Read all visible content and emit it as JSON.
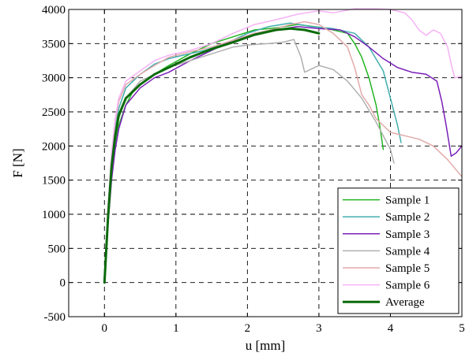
{
  "chart_data": {
    "type": "line",
    "xlabel": "u [mm]",
    "ylabel": "F [N]",
    "xlim": [
      -0.5,
      5
    ],
    "ylim": [
      -500,
      4000
    ],
    "xticks": [
      0,
      1,
      2,
      3,
      4,
      5
    ],
    "yticks": [
      -500,
      0,
      500,
      1000,
      1500,
      2000,
      2500,
      3000,
      3500,
      4000
    ],
    "grid": true,
    "legend_position": "bottom-right",
    "series": [
      {
        "name": "Sample 1",
        "color": "#22b522",
        "width": 1.5,
        "x": [
          0.0,
          0.05,
          0.1,
          0.15,
          0.2,
          0.3,
          0.4,
          0.5,
          0.7,
          0.9,
          1.2,
          1.5,
          1.8,
          2.1,
          2.4,
          2.7,
          3.0,
          3.2,
          3.4,
          3.5,
          3.6,
          3.7,
          3.8,
          3.85,
          3.9
        ],
        "y": [
          0,
          900,
          1600,
          2050,
          2300,
          2600,
          2800,
          2900,
          3050,
          3180,
          3350,
          3500,
          3600,
          3700,
          3730,
          3780,
          3740,
          3700,
          3650,
          3500,
          3300,
          3000,
          2600,
          2300,
          1950
        ]
      },
      {
        "name": "Sample 2",
        "color": "#42aeae",
        "width": 1.5,
        "x": [
          0.0,
          0.05,
          0.1,
          0.15,
          0.2,
          0.3,
          0.5,
          0.7,
          0.9,
          1.1,
          1.4,
          1.7,
          2.0,
          2.3,
          2.6,
          2.9,
          3.2,
          3.5,
          3.7,
          3.9,
          4.0,
          4.1,
          4.15
        ],
        "y": [
          0,
          1000,
          1750,
          2250,
          2550,
          2850,
          3050,
          3200,
          3280,
          3330,
          3400,
          3500,
          3650,
          3750,
          3800,
          3750,
          3720,
          3650,
          3450,
          3100,
          2700,
          2300,
          2050
        ]
      },
      {
        "name": "Sample 3",
        "color": "#7a1fb8",
        "width": 1.5,
        "x": [
          0.0,
          0.05,
          0.1,
          0.15,
          0.2,
          0.3,
          0.5,
          0.7,
          0.9,
          1.2,
          1.5,
          1.8,
          2.1,
          2.4,
          2.7,
          3.0,
          3.3,
          3.5,
          3.7,
          3.9,
          4.1,
          4.3,
          4.5,
          4.65,
          4.72,
          4.78,
          4.85,
          4.92,
          5.0
        ],
        "y": [
          0,
          850,
          1500,
          1950,
          2250,
          2600,
          2850,
          3000,
          3080,
          3250,
          3400,
          3550,
          3650,
          3700,
          3750,
          3720,
          3700,
          3600,
          3450,
          3280,
          3150,
          3080,
          3050,
          2950,
          2650,
          2300,
          1850,
          1900,
          2000
        ]
      },
      {
        "name": "Sample 4",
        "color": "#b0b0b0",
        "width": 1.5,
        "x": [
          0.0,
          0.05,
          0.1,
          0.15,
          0.2,
          0.3,
          0.5,
          0.7,
          0.9,
          1.2,
          1.5,
          1.8,
          2.0,
          2.3,
          2.5,
          2.65,
          2.75,
          2.8,
          3.0,
          3.2,
          3.4,
          3.6,
          3.8,
          3.95,
          4.0,
          4.05
        ],
        "y": [
          0,
          1000,
          1650,
          2100,
          2400,
          2700,
          2950,
          3050,
          3150,
          3250,
          3350,
          3450,
          3480,
          3500,
          3520,
          3560,
          3300,
          3080,
          3180,
          3120,
          2950,
          2700,
          2350,
          2050,
          1950,
          1750
        ]
      },
      {
        "name": "Sample 5",
        "color": "#e3aaaa",
        "width": 1.5,
        "x": [
          0.0,
          0.05,
          0.1,
          0.15,
          0.2,
          0.3,
          0.5,
          0.7,
          0.9,
          1.2,
          1.5,
          1.8,
          2.1,
          2.4,
          2.6,
          2.8,
          3.0,
          3.2,
          3.4,
          3.5,
          3.6,
          3.7,
          3.8,
          3.9,
          4.0,
          4.2,
          4.4,
          4.6,
          4.8,
          5.0
        ],
        "y": [
          0,
          1100,
          1850,
          2350,
          2650,
          2900,
          3050,
          3180,
          3300,
          3380,
          3450,
          3550,
          3650,
          3720,
          3780,
          3820,
          3780,
          3650,
          3450,
          3150,
          2750,
          2600,
          2400,
          2300,
          2200,
          2150,
          2100,
          2000,
          1800,
          1550
        ]
      },
      {
        "name": "Sample 6",
        "color": "#f6b2f6",
        "width": 1.5,
        "x": [
          0.0,
          0.05,
          0.1,
          0.15,
          0.2,
          0.3,
          0.5,
          0.7,
          0.9,
          1.2,
          1.5,
          1.8,
          2.1,
          2.4,
          2.7,
          3.0,
          3.2,
          3.5,
          3.8,
          4.0,
          4.2,
          4.3,
          4.4,
          4.5,
          4.6,
          4.7,
          4.8,
          4.85,
          4.9,
          5.0
        ],
        "y": [
          0,
          1100,
          1900,
          2400,
          2700,
          2950,
          3100,
          3250,
          3330,
          3400,
          3500,
          3650,
          3780,
          3850,
          3930,
          3980,
          3950,
          4010,
          4010,
          4000,
          3950,
          3850,
          3700,
          3620,
          3700,
          3650,
          3450,
          3200,
          3000,
          3020
        ]
      },
      {
        "name": "Average",
        "color": "#0a6a0a",
        "width": 3,
        "x": [
          0.0,
          0.05,
          0.1,
          0.15,
          0.2,
          0.3,
          0.5,
          0.7,
          0.9,
          1.2,
          1.5,
          1.8,
          2.1,
          2.4,
          2.6,
          2.8,
          3.0
        ],
        "y": [
          0,
          950,
          1700,
          2150,
          2450,
          2700,
          2900,
          3050,
          3150,
          3300,
          3420,
          3520,
          3630,
          3700,
          3720,
          3700,
          3650
        ]
      }
    ]
  }
}
